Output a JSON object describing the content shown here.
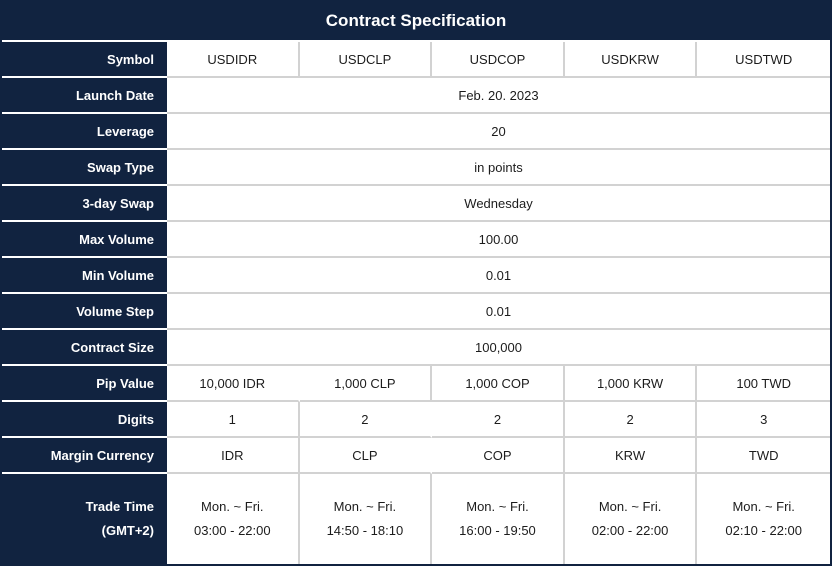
{
  "header": {
    "title": "Contract Specification"
  },
  "colors": {
    "navy": "#112340",
    "grid_line": "#d2d2d2",
    "label_text": "#ffffff",
    "value_text": "#1c1c1c"
  },
  "rows": {
    "symbol": {
      "label": "Symbol",
      "values": [
        "USDIDR",
        "USDCLP",
        "USDCOP",
        "USDKRW",
        "USDTWD"
      ]
    },
    "launch_date": {
      "label": "Launch Date",
      "value": "Feb. 20. 2023"
    },
    "leverage": {
      "label": "Leverage",
      "value": "20"
    },
    "swap_type": {
      "label": "Swap Type",
      "value": "in points"
    },
    "three_day_swap": {
      "label": "3-day Swap",
      "value": "Wednesday"
    },
    "max_volume": {
      "label": "Max Volume",
      "value": "100.00"
    },
    "min_volume": {
      "label": "Min Volume",
      "value": "0.01"
    },
    "volume_step": {
      "label": "Volume Step",
      "value": "0.01"
    },
    "contract_size": {
      "label": "Contract Size",
      "value": "100,000"
    },
    "pip_value": {
      "label": "Pip Value",
      "values": [
        "10,000 IDR",
        "1,000 CLP",
        "1,000 COP",
        "1,000 KRW",
        "100 TWD"
      ]
    },
    "digits": {
      "label": "Digits",
      "values": [
        "1",
        "2",
        "2",
        "2",
        "3"
      ]
    },
    "margin_currency": {
      "label": "Margin Currency",
      "values": [
        "IDR",
        "CLP",
        "COP",
        "KRW",
        "TWD"
      ]
    },
    "trade_time": {
      "label_line1": "Trade Time",
      "label_line2": "(GMT+2)",
      "values": [
        {
          "days": "Mon. ~ Fri.",
          "hours": "03:00 - 22:00"
        },
        {
          "days": "Mon. ~ Fri.",
          "hours": "14:50 - 18:10"
        },
        {
          "days": "Mon. ~ Fri.",
          "hours": "16:00 - 19:50"
        },
        {
          "days": "Mon. ~ Fri.",
          "hours": "02:00 - 22:00"
        },
        {
          "days": "Mon. ~ Fri.",
          "hours": "02:10 - 22:00"
        }
      ]
    }
  }
}
